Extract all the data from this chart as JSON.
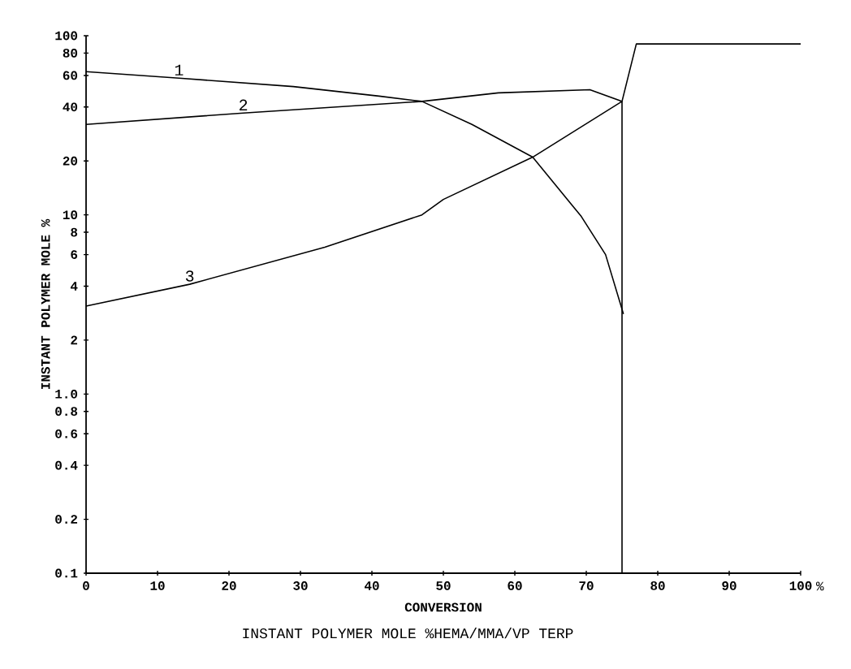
{
  "chart_data": {
    "type": "line",
    "title": "INSTANT POLYMER MOLE %HEMA/MMA/VP TERP",
    "xlabel": "CONVERSION",
    "ylabel": "INSTANT POLYMER MOLE %",
    "log": "y",
    "marker": "none",
    "line_style": "solid",
    "xlim": [
      0,
      100
    ],
    "ylim": [
      0.1,
      100
    ],
    "xticks": [
      0,
      10,
      20,
      30,
      40,
      50,
      60,
      70,
      80,
      90,
      100
    ],
    "yticks": [
      0.1,
      0.2,
      0.4,
      0.6,
      0.8,
      {
        "value": 1,
        "label": "1.0"
      },
      2,
      4,
      6,
      8,
      10,
      20,
      40,
      60,
      80,
      100
    ],
    "series": [
      {
        "name": "1",
        "color": "#000000",
        "x": [
          0,
          13,
          29,
          41,
          47,
          54,
          62.5,
          69.3,
          72.7,
          75.2
        ],
        "values": [
          63,
          58,
          52,
          46,
          43,
          32,
          21,
          9.8,
          6.0,
          2.8
        ]
      },
      {
        "name": "2",
        "color": "#000000",
        "x": [
          0,
          22,
          47,
          57.7,
          70.5,
          75,
          77,
          100
        ],
        "values": [
          32,
          37,
          43,
          48,
          50,
          43,
          90,
          90
        ]
      },
      {
        "name": "3",
        "color": "#000000",
        "x": [
          0,
          14.5,
          33.4,
          47,
          50,
          62.5,
          75,
          75
        ],
        "values": [
          3.1,
          4.1,
          6.6,
          10,
          12.2,
          21,
          43,
          0.1
        ]
      }
    ],
    "annotations": [
      "%"
    ]
  }
}
